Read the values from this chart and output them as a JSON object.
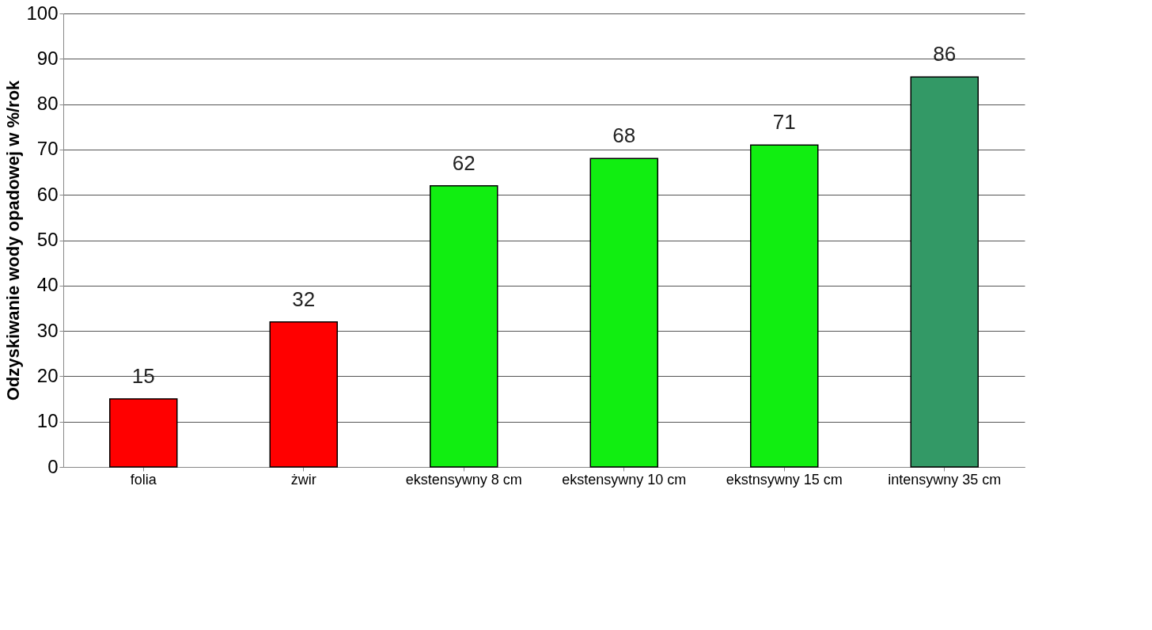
{
  "chart_data": {
    "type": "bar",
    "ylabel": "Odzyskiwanie wody opadowej w %/rok",
    "categories": [
      "folia",
      "żwir",
      "ekstensywny 8 cm",
      "ekstensywny 10 cm",
      "ekstnsywny 15 cm",
      "intensywny 35 cm"
    ],
    "values": [
      15,
      32,
      62,
      68,
      71,
      86
    ],
    "colors": [
      "#ff0000",
      "#ff0000",
      "#11ee11",
      "#11ee11",
      "#11ee11",
      "#339966"
    ],
    "ylim": [
      0,
      100
    ],
    "yticks": [
      0,
      10,
      20,
      30,
      40,
      50,
      60,
      70,
      80,
      90,
      100
    ],
    "grid": "y",
    "data_labels": true
  }
}
